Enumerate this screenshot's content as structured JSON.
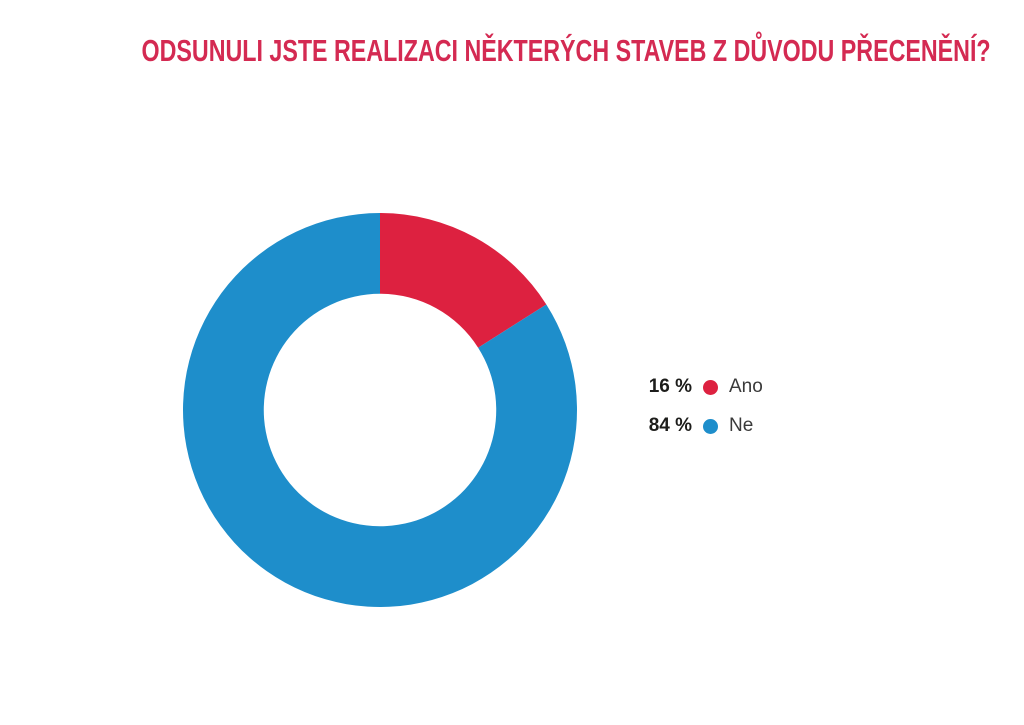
{
  "styles": {
    "background": "#ffffff",
    "title_color": "#d42a52",
    "legend_value_color": "#1d1d1b",
    "legend_label_color": "#3a3a3a"
  },
  "chart_data": {
    "type": "pie",
    "subtype": "donut",
    "title": "ODSUNULI JSTE REALIZACI NĚKTERÝCH STAVEB Z DŮVODU PŘECENĚNÍ?",
    "categories": [
      "Ano",
      "Ne"
    ],
    "values": [
      16,
      84
    ],
    "unit": "%",
    "colors": [
      "#dd2140",
      "#1e8ecb"
    ],
    "start_angle_deg": 0,
    "direction": "clockwise",
    "inner_radius_ratio": 0.59,
    "legend_position": "right",
    "slices": [
      {
        "label": "Ano",
        "value": 16,
        "value_label": "16 %",
        "color": "#dd2140"
      },
      {
        "label": "Ne",
        "value": 84,
        "value_label": "84 %",
        "color": "#1e8ecb"
      }
    ]
  }
}
